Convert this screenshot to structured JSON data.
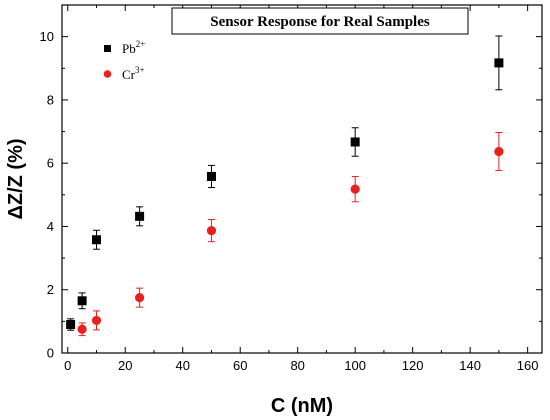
{
  "chart_data": {
    "type": "scatter",
    "title": "Sensor Response for Real Samples",
    "xlabel": "C (nM)",
    "ylabel": "ΔZ/Z (%)",
    "xlim": [
      -2,
      165
    ],
    "ylim": [
      0,
      11
    ],
    "xticks": [
      0,
      20,
      40,
      60,
      80,
      100,
      120,
      140,
      160
    ],
    "yticks": [
      0,
      2,
      4,
      6,
      8,
      10
    ],
    "legend_position": "top-left",
    "grid": false,
    "series": [
      {
        "name": "Pb",
        "name_superscript": "2+",
        "color": "#000000",
        "marker": "square",
        "x": [
          1,
          5,
          10,
          25,
          50,
          100,
          150
        ],
        "y": [
          0.9,
          1.65,
          3.58,
          4.32,
          5.58,
          6.67,
          9.17
        ],
        "err": [
          0.18,
          0.25,
          0.3,
          0.3,
          0.35,
          0.45,
          0.85
        ]
      },
      {
        "name": "Cr",
        "name_superscript": "3+",
        "color": "#e8211c",
        "marker": "circle",
        "x": [
          5,
          10,
          25,
          50,
          100,
          150
        ],
        "y": [
          0.75,
          1.03,
          1.75,
          3.87,
          5.18,
          6.37
        ],
        "err": [
          0.2,
          0.3,
          0.3,
          0.35,
          0.4,
          0.6
        ]
      }
    ]
  }
}
